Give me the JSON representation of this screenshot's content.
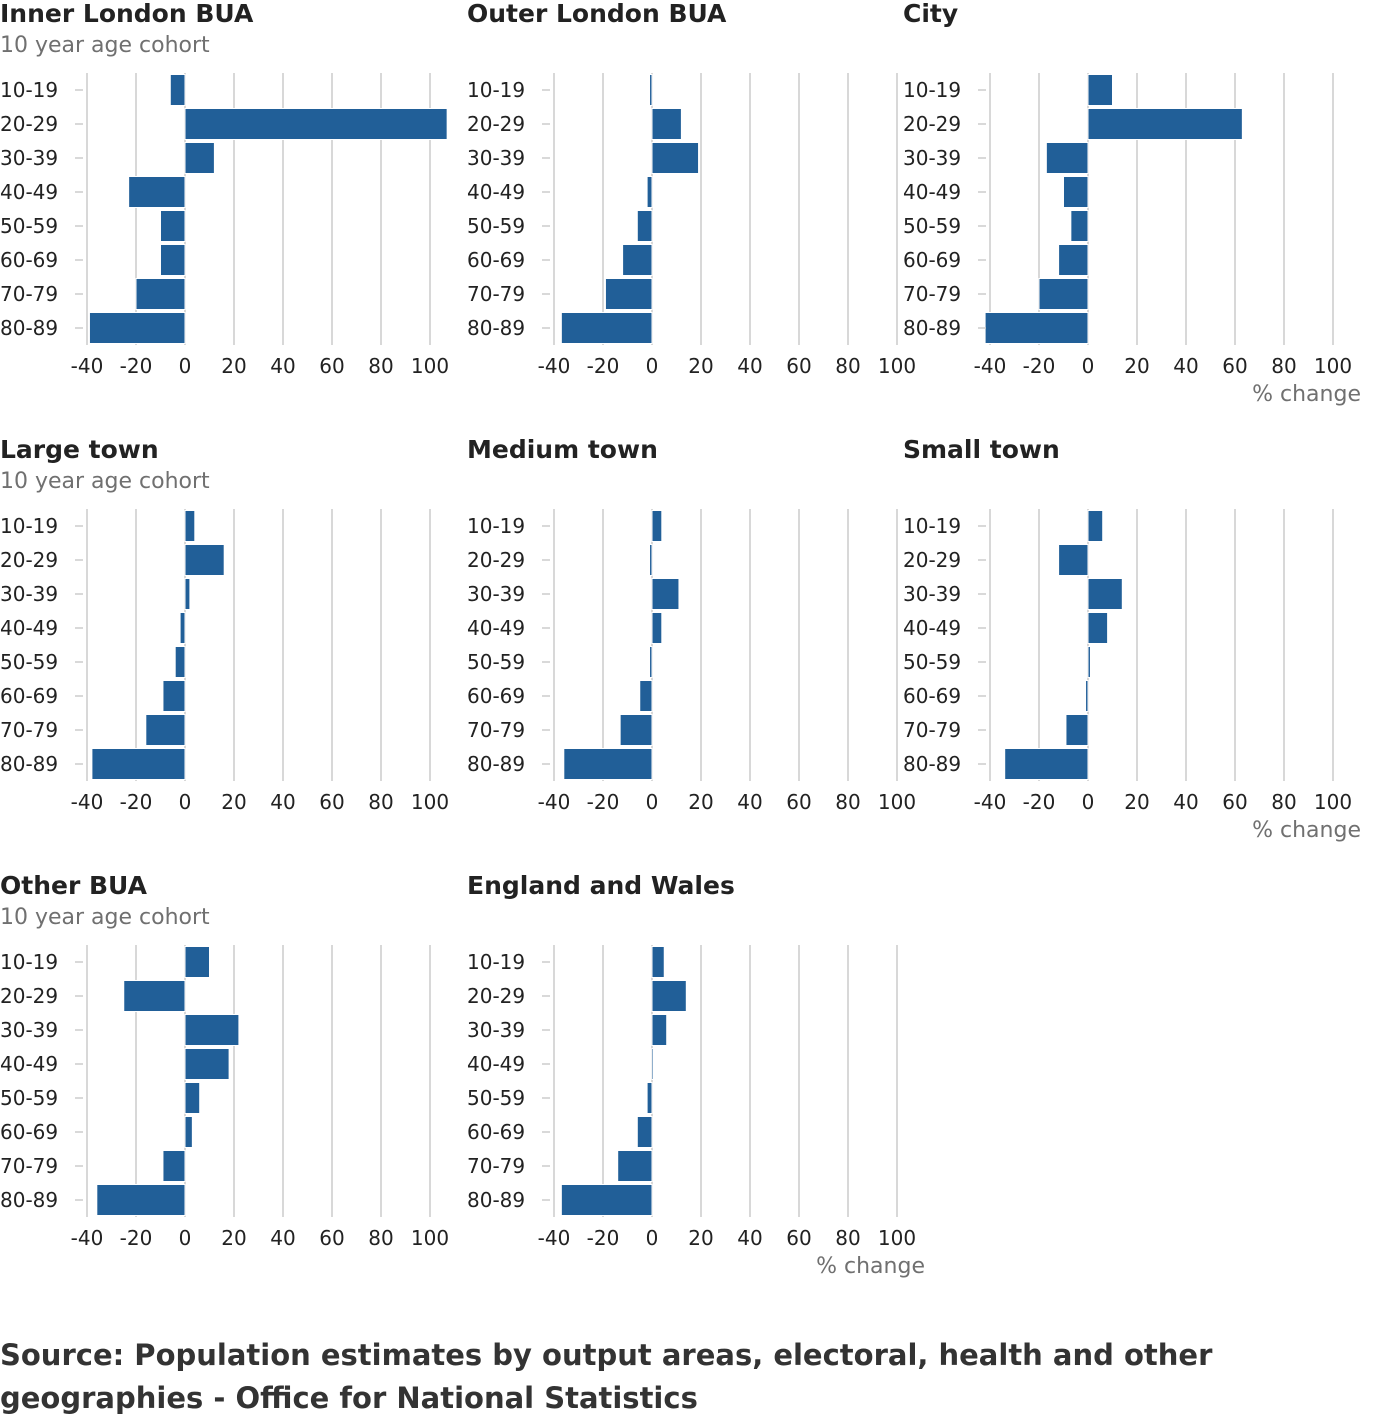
{
  "source": "Source: Population estimates by output areas, electoral, health and other geographies - Office for National Statistics",
  "colors": {
    "bar": "#215f98",
    "grid": "#cccccc",
    "title": "#222222",
    "axis_title": "#707070"
  },
  "chart_data": [
    {
      "type": "bar",
      "orientation": "horizontal",
      "title": "Inner London BUA",
      "ylabel": "10 year age cohort",
      "xlabel": "",
      "xlim": [
        -40,
        100
      ],
      "xticks": [
        -40,
        -20,
        0,
        20,
        40,
        60,
        80,
        100
      ],
      "grid": true,
      "categories": [
        "10-19",
        "20-29",
        "30-39",
        "40-49",
        "50-59",
        "60-69",
        "70-79",
        "80-89"
      ],
      "values": [
        -6,
        107,
        12,
        -23,
        -10,
        -10,
        -20,
        -39
      ]
    },
    {
      "type": "bar",
      "orientation": "horizontal",
      "title": "Outer London BUA",
      "ylabel": "",
      "xlabel": "",
      "xlim": [
        -40,
        100
      ],
      "xticks": [
        -40,
        -20,
        0,
        20,
        40,
        60,
        80,
        100
      ],
      "grid": true,
      "categories": [
        "10-19",
        "20-29",
        "30-39",
        "40-49",
        "50-59",
        "60-69",
        "70-79",
        "80-89"
      ],
      "values": [
        -1,
        12,
        19,
        -2,
        -6,
        -12,
        -19,
        -37
      ]
    },
    {
      "type": "bar",
      "orientation": "horizontal",
      "title": "City",
      "ylabel": "",
      "xlabel": "% change",
      "xlim": [
        -40,
        100
      ],
      "xticks": [
        -40,
        -20,
        0,
        20,
        40,
        60,
        80,
        100
      ],
      "grid": true,
      "categories": [
        "10-19",
        "20-29",
        "30-39",
        "40-49",
        "50-59",
        "60-69",
        "70-79",
        "80-89"
      ],
      "values": [
        10,
        63,
        -17,
        -10,
        -7,
        -12,
        -20,
        -42
      ]
    },
    {
      "type": "bar",
      "orientation": "horizontal",
      "title": "Large town",
      "ylabel": "10 year age cohort",
      "xlabel": "",
      "xlim": [
        -40,
        100
      ],
      "xticks": [
        -40,
        -20,
        0,
        20,
        40,
        60,
        80,
        100
      ],
      "grid": true,
      "categories": [
        "10-19",
        "20-29",
        "30-39",
        "40-49",
        "50-59",
        "60-69",
        "70-79",
        "80-89"
      ],
      "values": [
        4,
        16,
        2,
        -2,
        -4,
        -9,
        -16,
        -38
      ]
    },
    {
      "type": "bar",
      "orientation": "horizontal",
      "title": "Medium town",
      "ylabel": "",
      "xlabel": "",
      "xlim": [
        -40,
        100
      ],
      "xticks": [
        -40,
        -20,
        0,
        20,
        40,
        60,
        80,
        100
      ],
      "grid": true,
      "categories": [
        "10-19",
        "20-29",
        "30-39",
        "40-49",
        "50-59",
        "60-69",
        "70-79",
        "80-89"
      ],
      "values": [
        4,
        -1,
        11,
        4,
        -1,
        -5,
        -13,
        -36
      ]
    },
    {
      "type": "bar",
      "orientation": "horizontal",
      "title": "Small town",
      "ylabel": "",
      "xlabel": "% change",
      "xlim": [
        -40,
        100
      ],
      "xticks": [
        -40,
        -20,
        0,
        20,
        40,
        60,
        80,
        100
      ],
      "grid": true,
      "categories": [
        "10-19",
        "20-29",
        "30-39",
        "40-49",
        "50-59",
        "60-69",
        "70-79",
        "80-89"
      ],
      "values": [
        6,
        -12,
        14,
        8,
        1,
        -1,
        -9,
        -34
      ]
    },
    {
      "type": "bar",
      "orientation": "horizontal",
      "title": "Other BUA",
      "ylabel": "10 year age cohort",
      "xlabel": "",
      "xlim": [
        -40,
        100
      ],
      "xticks": [
        -40,
        -20,
        0,
        20,
        40,
        60,
        80,
        100
      ],
      "grid": true,
      "categories": [
        "10-19",
        "20-29",
        "30-39",
        "40-49",
        "50-59",
        "60-69",
        "70-79",
        "80-89"
      ],
      "values": [
        10,
        -25,
        22,
        18,
        6,
        3,
        -9,
        -36
      ]
    },
    {
      "type": "bar",
      "orientation": "horizontal",
      "title": "England and Wales",
      "ylabel": "",
      "xlabel": "% change",
      "xlim": [
        -40,
        100
      ],
      "xticks": [
        -40,
        -20,
        0,
        20,
        40,
        60,
        80,
        100
      ],
      "grid": true,
      "categories": [
        "10-19",
        "20-29",
        "30-39",
        "40-49",
        "50-59",
        "60-69",
        "70-79",
        "80-89"
      ],
      "values": [
        5,
        14,
        6,
        0,
        -2,
        -6,
        -14,
        -37
      ]
    }
  ]
}
